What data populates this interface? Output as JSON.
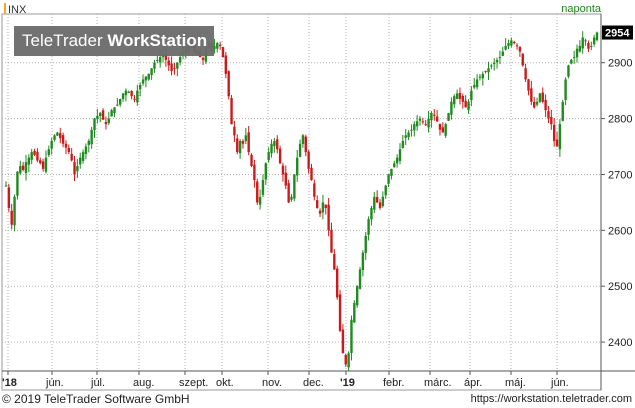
{
  "header": {
    "symbol": "INX",
    "period": "naponta"
  },
  "watermark": {
    "brand_light": "TeleTrader ",
    "brand_bold": "WorkStation"
  },
  "footer": {
    "copyright": "© 2019 TeleTrader Software GmbH",
    "url": "https://workstation.teletrader.com"
  },
  "colors": {
    "up": "#1f8a1f",
    "down": "#cc1a1a",
    "last_value_box": "#000000",
    "grid": "#b0b0b0",
    "frame": "#999999"
  },
  "chart_data": {
    "type": "candlestick",
    "symbol": "INX",
    "interval": "naponta",
    "last_value": "2954",
    "ylim": [
      2350,
      2980
    ],
    "y_ticks": [
      2400,
      2500,
      2600,
      2700,
      2800,
      2900
    ],
    "x_ticks": [
      "'18",
      "jún.",
      "júl.",
      "aug.",
      "szept.",
      "okt.",
      "nov.",
      "dec.",
      "'19",
      "febr.",
      "márc.",
      "ápr.",
      "máj.",
      "jún."
    ],
    "grid": "dotted",
    "close_series": [
      2680,
      2640,
      2610,
      2660,
      2705,
      2715,
      2708,
      2722,
      2730,
      2740,
      2735,
      2725,
      2720,
      2710,
      2730,
      2745,
      2760,
      2770,
      2775,
      2765,
      2755,
      2748,
      2740,
      2725,
      2700,
      2715,
      2730,
      2740,
      2750,
      2760,
      2780,
      2800,
      2805,
      2810,
      2798,
      2790,
      2800,
      2815,
      2820,
      2825,
      2835,
      2845,
      2850,
      2848,
      2840,
      2835,
      2850,
      2860,
      2870,
      2875,
      2880,
      2890,
      2900,
      2905,
      2910,
      2915,
      2905,
      2895,
      2885,
      2890,
      2900,
      2910,
      2918,
      2925,
      2930,
      2928,
      2920,
      2915,
      2910,
      2905,
      2925,
      2930,
      2925,
      2930,
      2935,
      2930,
      2910,
      2880,
      2840,
      2790,
      2770,
      2740,
      2760,
      2755,
      2770,
      2740,
      2715,
      2690,
      2650,
      2660,
      2690,
      2720,
      2740,
      2755,
      2760,
      2745,
      2720,
      2700,
      2680,
      2650,
      2660,
      2700,
      2730,
      2755,
      2770,
      2740,
      2710,
      2690,
      2660,
      2640,
      2630,
      2650,
      2640,
      2600,
      2560,
      2530,
      2480,
      2420,
      2380,
      2360,
      2380,
      2440,
      2470,
      2500,
      2530,
      2560,
      2590,
      2620,
      2640,
      2660,
      2650,
      2640,
      2660,
      2680,
      2700,
      2710,
      2720,
      2730,
      2745,
      2760,
      2770,
      2775,
      2780,
      2790,
      2795,
      2800,
      2795,
      2790,
      2800,
      2810,
      2805,
      2795,
      2780,
      2775,
      2790,
      2810,
      2830,
      2840,
      2845,
      2835,
      2830,
      2820,
      2830,
      2850,
      2860,
      2870,
      2875,
      2880,
      2885,
      2890,
      2895,
      2900,
      2905,
      2910,
      2920,
      2930,
      2935,
      2940,
      2935,
      2930,
      2920,
      2895,
      2870,
      2850,
      2830,
      2820,
      2830,
      2845,
      2830,
      2815,
      2800,
      2790,
      2760,
      2750,
      2790,
      2830,
      2870,
      2895,
      2905,
      2910,
      2925,
      2930,
      2945,
      2940,
      2925,
      2930,
      2945,
      2954
    ]
  }
}
